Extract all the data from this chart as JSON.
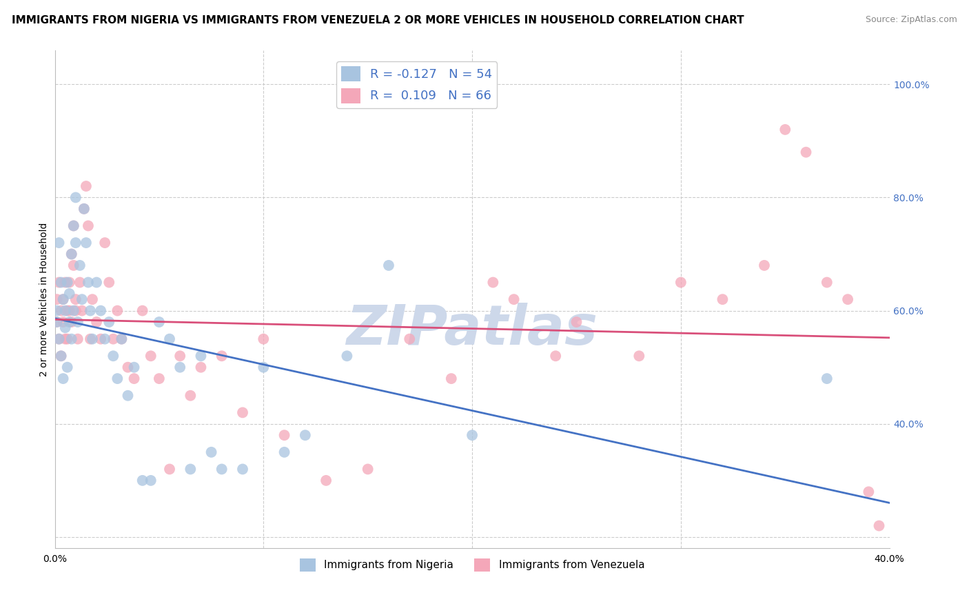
{
  "title": "IMMIGRANTS FROM NIGERIA VS IMMIGRANTS FROM VENEZUELA 2 OR MORE VEHICLES IN HOUSEHOLD CORRELATION CHART",
  "source_text": "Source: ZipAtlas.com",
  "ylabel": "2 or more Vehicles in Household",
  "xlim": [
    0.0,
    0.4
  ],
  "ylim": [
    0.18,
    1.06
  ],
  "xtick_positions": [
    0.0,
    0.1,
    0.2,
    0.3,
    0.4
  ],
  "xticklabels": [
    "0.0%",
    "",
    "",
    "",
    "40.0%"
  ],
  "ytick_positions": [
    0.2,
    0.4,
    0.6,
    0.8,
    1.0
  ],
  "yticklabels_right": [
    "",
    "40.0%",
    "60.0%",
    "80.0%",
    "100.0%"
  ],
  "nigeria_R": -0.127,
  "nigeria_N": 54,
  "venezuela_R": 0.109,
  "venezuela_N": 66,
  "nigeria_color": "#a8c4e0",
  "venezuela_color": "#f4a7b9",
  "nigeria_line_color": "#4472c4",
  "venezuela_line_color": "#d94f7a",
  "nigeria_x": [
    0.001,
    0.001,
    0.002,
    0.002,
    0.003,
    0.003,
    0.004,
    0.004,
    0.005,
    0.005,
    0.006,
    0.006,
    0.007,
    0.007,
    0.008,
    0.008,
    0.009,
    0.009,
    0.01,
    0.01,
    0.011,
    0.012,
    0.013,
    0.014,
    0.015,
    0.016,
    0.017,
    0.018,
    0.02,
    0.022,
    0.024,
    0.026,
    0.028,
    0.03,
    0.032,
    0.035,
    0.038,
    0.042,
    0.046,
    0.05,
    0.055,
    0.06,
    0.065,
    0.07,
    0.075,
    0.08,
    0.09,
    0.1,
    0.11,
    0.12,
    0.14,
    0.16,
    0.2,
    0.37
  ],
  "nigeria_y": [
    0.6,
    0.58,
    0.72,
    0.55,
    0.65,
    0.52,
    0.62,
    0.48,
    0.6,
    0.57,
    0.65,
    0.5,
    0.63,
    0.58,
    0.7,
    0.55,
    0.6,
    0.75,
    0.8,
    0.72,
    0.58,
    0.68,
    0.62,
    0.78,
    0.72,
    0.65,
    0.6,
    0.55,
    0.65,
    0.6,
    0.55,
    0.58,
    0.52,
    0.48,
    0.55,
    0.45,
    0.5,
    0.3,
    0.3,
    0.58,
    0.55,
    0.5,
    0.32,
    0.52,
    0.35,
    0.32,
    0.32,
    0.5,
    0.35,
    0.38,
    0.52,
    0.68,
    0.38,
    0.48
  ],
  "venezuela_x": [
    0.001,
    0.001,
    0.002,
    0.002,
    0.003,
    0.003,
    0.004,
    0.004,
    0.005,
    0.005,
    0.006,
    0.006,
    0.007,
    0.007,
    0.008,
    0.008,
    0.009,
    0.009,
    0.01,
    0.01,
    0.011,
    0.012,
    0.013,
    0.014,
    0.015,
    0.016,
    0.017,
    0.018,
    0.02,
    0.022,
    0.024,
    0.026,
    0.028,
    0.03,
    0.032,
    0.035,
    0.038,
    0.042,
    0.046,
    0.05,
    0.055,
    0.06,
    0.065,
    0.07,
    0.08,
    0.09,
    0.1,
    0.11,
    0.13,
    0.15,
    0.17,
    0.19,
    0.21,
    0.22,
    0.24,
    0.25,
    0.28,
    0.3,
    0.32,
    0.34,
    0.35,
    0.36,
    0.37,
    0.38,
    0.39,
    0.395
  ],
  "venezuela_y": [
    0.62,
    0.58,
    0.65,
    0.55,
    0.6,
    0.52,
    0.62,
    0.58,
    0.65,
    0.55,
    0.6,
    0.55,
    0.65,
    0.6,
    0.58,
    0.7,
    0.75,
    0.68,
    0.62,
    0.6,
    0.55,
    0.65,
    0.6,
    0.78,
    0.82,
    0.75,
    0.55,
    0.62,
    0.58,
    0.55,
    0.72,
    0.65,
    0.55,
    0.6,
    0.55,
    0.5,
    0.48,
    0.6,
    0.52,
    0.48,
    0.32,
    0.52,
    0.45,
    0.5,
    0.52,
    0.42,
    0.55,
    0.38,
    0.3,
    0.32,
    0.55,
    0.48,
    0.65,
    0.62,
    0.52,
    0.58,
    0.52,
    0.65,
    0.62,
    0.68,
    0.92,
    0.88,
    0.65,
    0.62,
    0.28,
    0.22
  ],
  "watermark_text": "ZIPatlas",
  "watermark_color": "#cdd8ea",
  "grid_color": "#cccccc",
  "background_color": "#ffffff",
  "title_fontsize": 11,
  "axis_label_fontsize": 10,
  "tick_fontsize": 10,
  "legend_fontsize": 13,
  "source_fontsize": 9
}
